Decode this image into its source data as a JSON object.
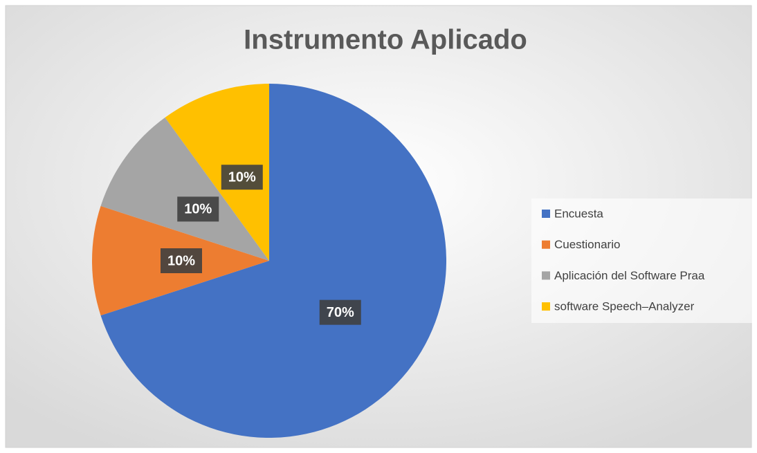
{
  "chart_data": {
    "type": "pie",
    "title": "Instrumento Aplicado",
    "categories": [
      "Encuesta",
      "Cuestionario",
      "Aplicación del Software Praa",
      "software Speech–Analyzer"
    ],
    "values": [
      70,
      10,
      10,
      10
    ],
    "value_labels": [
      "70%",
      "10%",
      "10%",
      "10%"
    ],
    "colors": [
      "#4472c4",
      "#ed7d31",
      "#a5a5a5",
      "#ffc000"
    ],
    "legend": "right"
  }
}
